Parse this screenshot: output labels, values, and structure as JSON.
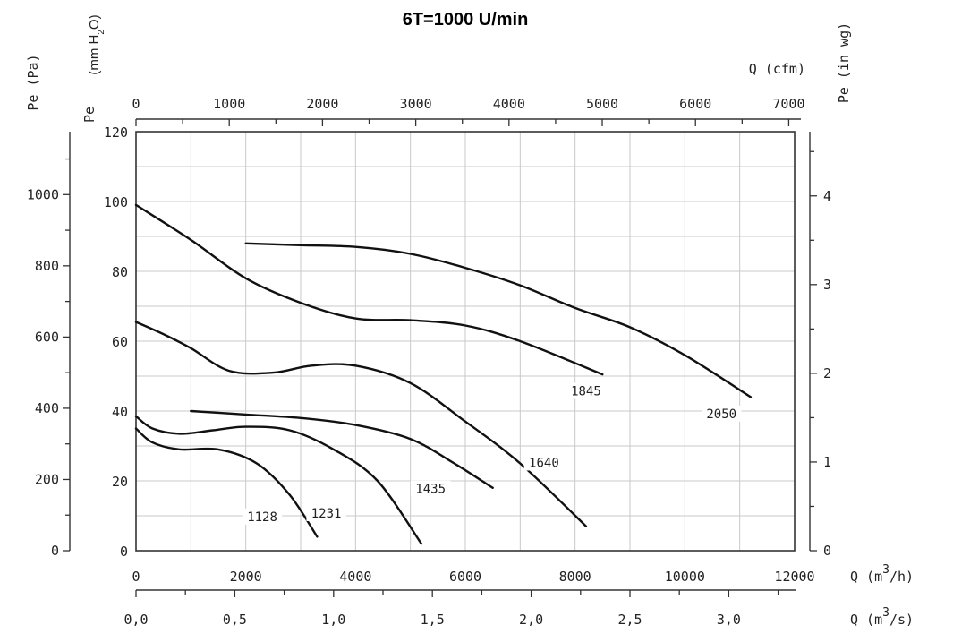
{
  "chart_data": {
    "type": "line",
    "title": "6T=1000 U/min",
    "axes": {
      "left_pa": {
        "label": "Pe  (Pa)",
        "ticks": [
          "0",
          "200",
          "400",
          "600",
          "800",
          "1000"
        ],
        "values": [
          0,
          200,
          400,
          600,
          800,
          1000
        ]
      },
      "left_mm": {
        "label_prefix": "Pe",
        "label": "(mm H",
        "label_sub": "2",
        "label_suffix": "O)",
        "ticks": [
          "0",
          "20",
          "40",
          "60",
          "80",
          "100",
          "120"
        ],
        "values": [
          0,
          20,
          40,
          60,
          80,
          100,
          120
        ]
      },
      "right_inwg": {
        "label": "Pe  (in  wg)",
        "ticks": [
          "0",
          "1",
          "2",
          "3",
          "4"
        ],
        "values": [
          0,
          1,
          2,
          3,
          4
        ]
      },
      "top_cfm": {
        "label": "Q  (cfm)",
        "ticks": [
          "0",
          "1000",
          "2000",
          "3000",
          "4000",
          "5000",
          "6000",
          "7000"
        ],
        "values": [
          0,
          1000,
          2000,
          3000,
          4000,
          5000,
          6000,
          7000
        ]
      },
      "bottom_m3h": {
        "label": "Q  (m",
        "label_sup": "3",
        "label_suffix": "/h)",
        "ticks": [
          "0",
          "2000",
          "4000",
          "6000",
          "8000",
          "10000",
          "12000"
        ],
        "values": [
          0,
          2000,
          4000,
          6000,
          8000,
          10000,
          12000
        ]
      },
      "bottom_m3s": {
        "label": "Q  (m",
        "label_sup": "3",
        "label_suffix": "/s)",
        "ticks": [
          "0,0",
          "0,5",
          "1,0",
          "1,5",
          "2,0",
          "2,5",
          "3,0"
        ],
        "values": [
          0,
          0.5,
          1.0,
          1.5,
          2.0,
          2.5,
          3.0
        ]
      }
    },
    "x_unit": "m3/h",
    "y_unit": "mm H2O",
    "xlim": [
      0,
      12000
    ],
    "ylim": [
      0,
      120
    ],
    "grid": true,
    "series": [
      {
        "name": "1128",
        "x": [
          0,
          300,
          800,
          1500,
          2200,
          2800,
          3300
        ],
        "y": [
          35,
          31,
          29,
          29,
          25,
          16,
          4
        ],
        "label_at": [
          3450,
          9
        ]
      },
      {
        "name": "1231",
        "x": [
          0,
          300,
          800,
          1400,
          2000,
          2800,
          3600,
          4400,
          5200
        ],
        "y": [
          38.5,
          35,
          33.5,
          34.5,
          35.5,
          34.5,
          29,
          20,
          2
        ],
        "label_at": [
          5200,
          10
        ]
      },
      {
        "name": "1435",
        "x": [
          1000,
          2000,
          3000,
          4000,
          5000,
          5800,
          6500
        ],
        "y": [
          40,
          39,
          38,
          36,
          32,
          25,
          18
        ],
        "label_at": [
          8050,
          17
        ]
      },
      {
        "name": "1640",
        "x": [
          0,
          500,
          1000,
          1700,
          2500,
          3200,
          4000,
          5000,
          6000,
          7000,
          8200
        ],
        "y": [
          65.5,
          62,
          58,
          51.5,
          51,
          53,
          53,
          48,
          37,
          25,
          7
        ],
        "label_at": [
          11150,
          24.5
        ]
      },
      {
        "name": "1845",
        "x": [
          0,
          1000,
          2000,
          3000,
          4000,
          5000,
          6000,
          7000,
          8500
        ],
        "y": [
          99,
          89,
          78,
          71,
          66.5,
          66,
          64.5,
          60,
          50.5
        ],
        "label_at": [
          12300,
          45
        ]
      },
      {
        "name": "2050",
        "x": [
          2000,
          3000,
          4000,
          5000,
          6000,
          7000,
          8000,
          9000,
          10000,
          11200
        ],
        "y": [
          88,
          87.5,
          87,
          85,
          81,
          76,
          69.5,
          64,
          56,
          44
        ],
        "label_at": [
          16000,
          38.5
        ]
      }
    ]
  }
}
